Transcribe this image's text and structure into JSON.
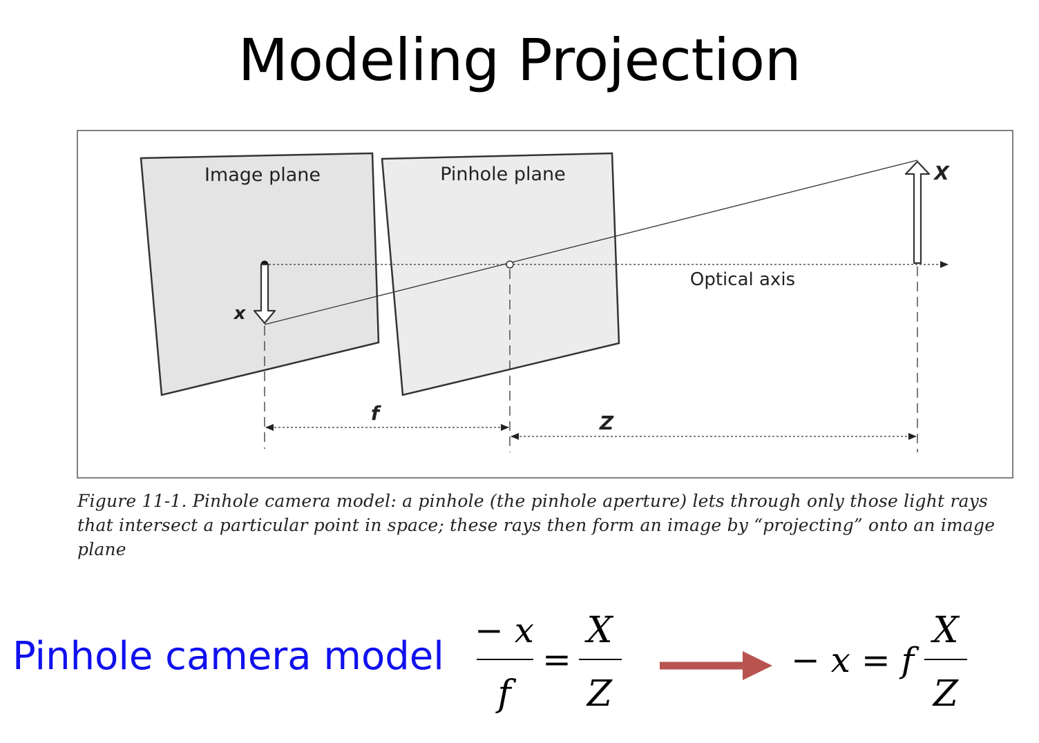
{
  "slide": {
    "title": "Modeling Projection"
  },
  "figure": {
    "image_plane_label": "Image plane",
    "pinhole_plane_label": "Pinhole plane",
    "optical_axis_label": "Optical axis",
    "object_label": "X",
    "image_label": "x",
    "focal_label": "f",
    "distance_label": "Z",
    "caption": "Figure 11-1. Pinhole camera model: a pinhole (the pinhole aperture) lets through only those light rays that intersect a particular point in space; these rays then form an image by “projecting” onto an image plane"
  },
  "model": {
    "label": "Pinhole camera model",
    "eq1_numerator_left": "− x",
    "eq1_denominator_left": "f",
    "eq1_equals": "=",
    "eq1_numerator_right": "X",
    "eq1_denominator_right": "Z",
    "eq2_left": "− x = f",
    "eq2_numerator": "X",
    "eq2_denominator": "Z",
    "arrow_color": "#b85450"
  }
}
